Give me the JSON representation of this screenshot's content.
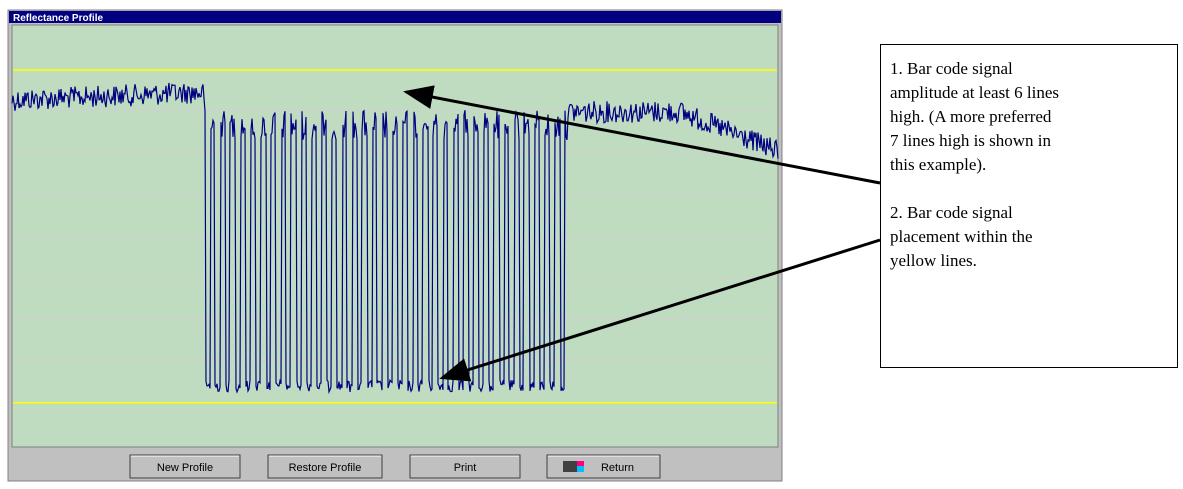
{
  "window": {
    "title": "Reflectance Profile"
  },
  "buttons": [
    "New Profile",
    "Restore Profile",
    "Print",
    "Return"
  ],
  "annotation": {
    "notes": [
      {
        "lines": [
          "1. Bar code signal",
          "amplitude at least 6 lines",
          "high. (A more preferred",
          "7 lines high is shown in",
          "this example)."
        ]
      },
      {
        "lines": [
          "2. Bar code signal",
          "placement within the",
          "yellow lines."
        ]
      }
    ]
  }
}
